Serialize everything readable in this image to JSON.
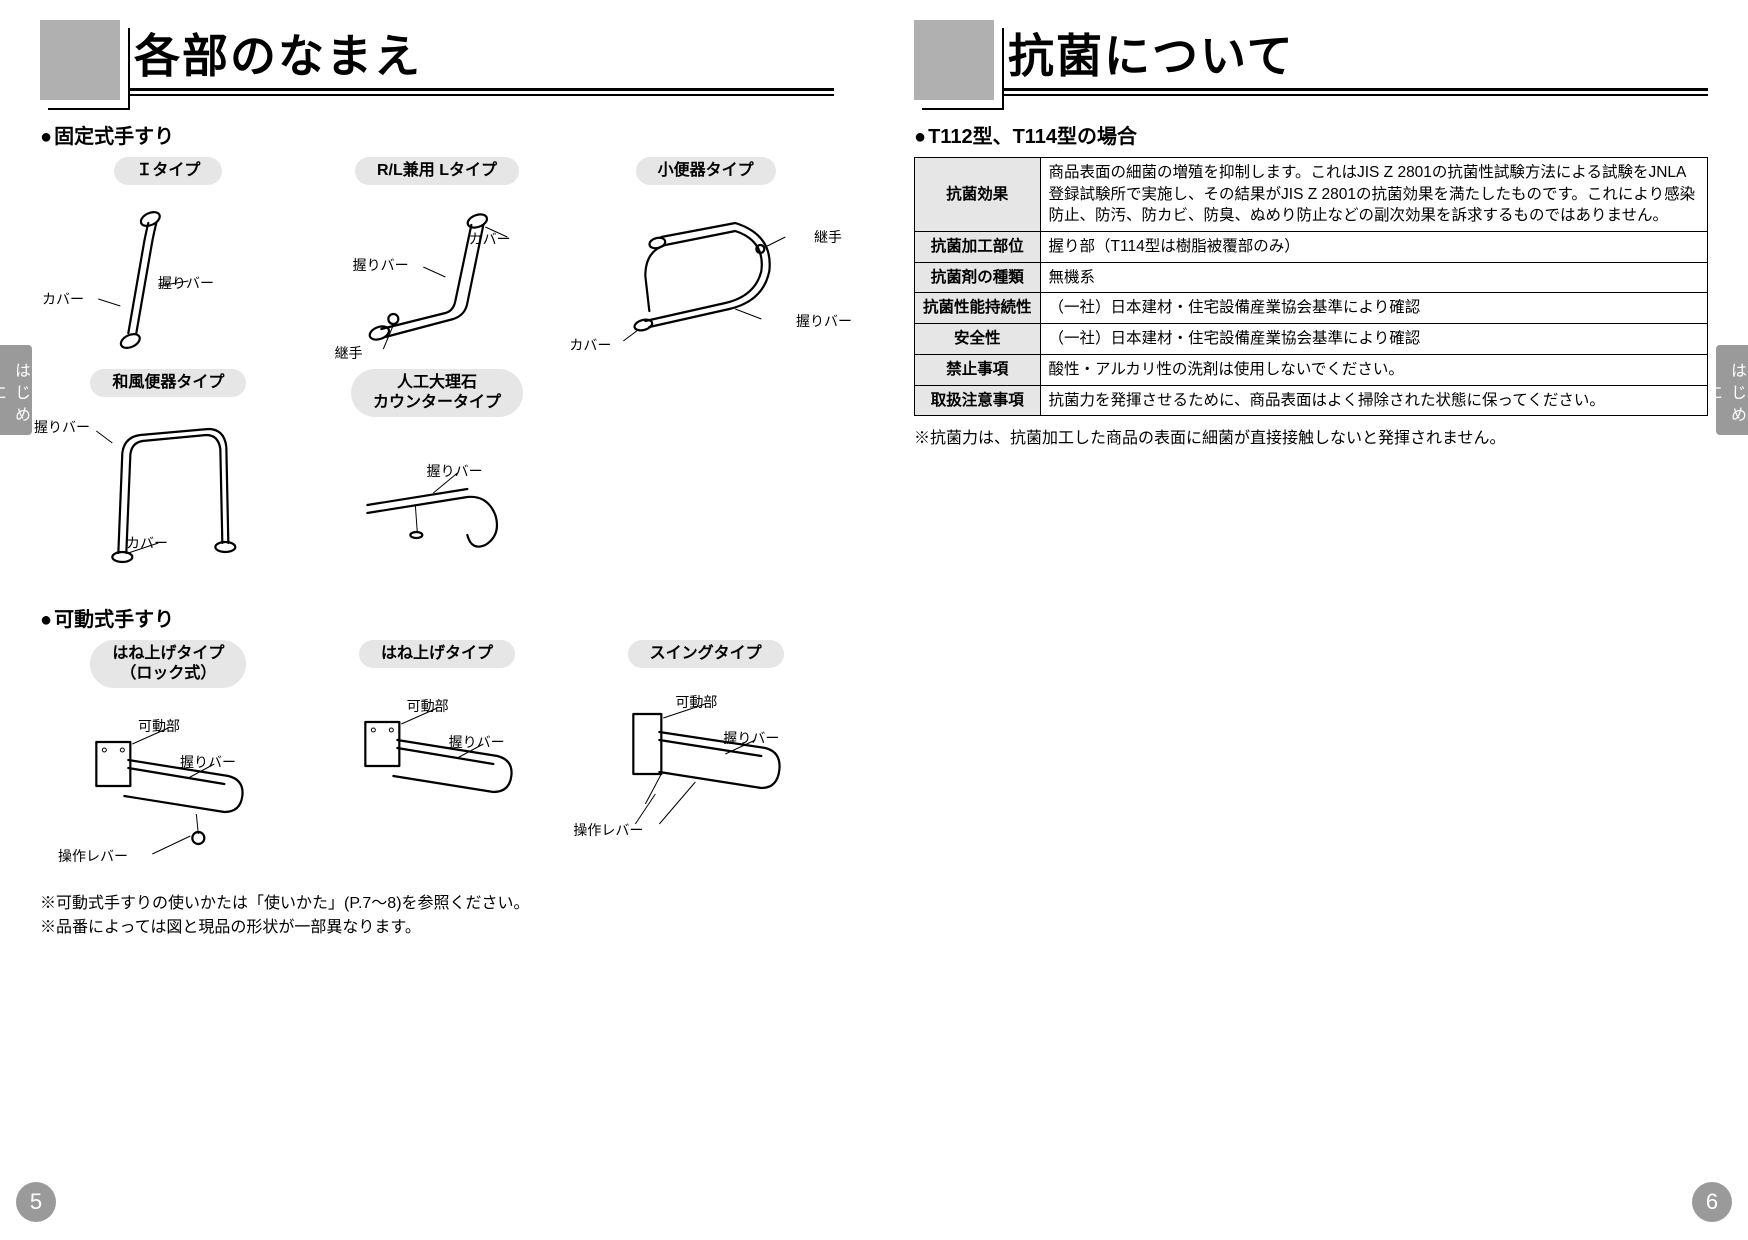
{
  "left": {
    "title": "各部のなまえ",
    "side_tab": "はじめに",
    "page_number": "5",
    "fixed": {
      "heading": "固定式手すり",
      "types": [
        {
          "label": "Ｉタイプ",
          "callouts": {
            "cover": "カバー",
            "bar": "握りバー"
          }
        },
        {
          "label": "R/L兼用 Lタイプ",
          "callouts": {
            "cover": "カバー",
            "bar": "握りバー",
            "joint": "継手"
          }
        },
        {
          "label": "小便器タイプ",
          "callouts": {
            "cover": "カバー",
            "bar": "握りバー",
            "joint": "継手"
          }
        },
        {
          "label": "和風便器タイプ",
          "callouts": {
            "cover": "カバー",
            "bar": "握りバー"
          }
        },
        {
          "label": "人工大理石\nカウンタータイプ",
          "callouts": {
            "bar": "握りバー"
          }
        }
      ]
    },
    "movable": {
      "heading": "可動式手すり",
      "types": [
        {
          "label": "はね上げタイプ\n（ロック式）",
          "callouts": {
            "pivot": "可動部",
            "bar": "握りバー",
            "lever": "操作レバー"
          }
        },
        {
          "label": "はね上げタイプ",
          "callouts": {
            "pivot": "可動部",
            "bar": "握りバー"
          }
        },
        {
          "label": "スイングタイプ",
          "callouts": {
            "pivot": "可動部",
            "bar": "握りバー",
            "lever": "操作レバー"
          }
        }
      ]
    },
    "notes": [
      "可動式手すりの使いかたは「使いかた」(P.7～8)を参照ください。",
      "品番によっては図と現品の形状が一部異なります。"
    ]
  },
  "right": {
    "title": "抗菌について",
    "side_tab": "はじめに",
    "page_number": "6",
    "subheading": "T112型、T114型の場合",
    "table": [
      {
        "h": "抗菌効果",
        "v": "商品表面の細菌の増殖を抑制します。これはJIS Z 2801の抗菌性試験方法による試験をJNLA登録試験所で実施し、その結果がJIS Z 2801の抗菌効果を満たしたものです。これにより感染防止、防汚、防カビ、防臭、ぬめり防止などの副次効果を訴求するものではありません。"
      },
      {
        "h": "抗菌加工部位",
        "v": "握り部（T114型は樹脂被覆部のみ）"
      },
      {
        "h": "抗菌剤の種類",
        "v": "無機系"
      },
      {
        "h": "抗菌性能持続性",
        "v": "（一社）日本建材・住宅設備産業協会基準により確認"
      },
      {
        "h": "安全性",
        "v": "（一社）日本建材・住宅設備産業協会基準により確認"
      },
      {
        "h": "禁止事項",
        "v": "酸性・アルカリ性の洗剤は使用しないでください。"
      },
      {
        "h": "取扱注意事項",
        "v": "抗菌力を発揮させるために、商品表面はよく掃除された状態に保ってください。"
      }
    ],
    "table_note": "抗菌力は、抗菌加工した商品の表面に細菌が直接接触しないと発揮されません。"
  },
  "colors": {
    "gray_box": "#b0b0b0",
    "pill_bg": "#e6e6e6",
    "tab_bg": "#9a9a9a"
  }
}
